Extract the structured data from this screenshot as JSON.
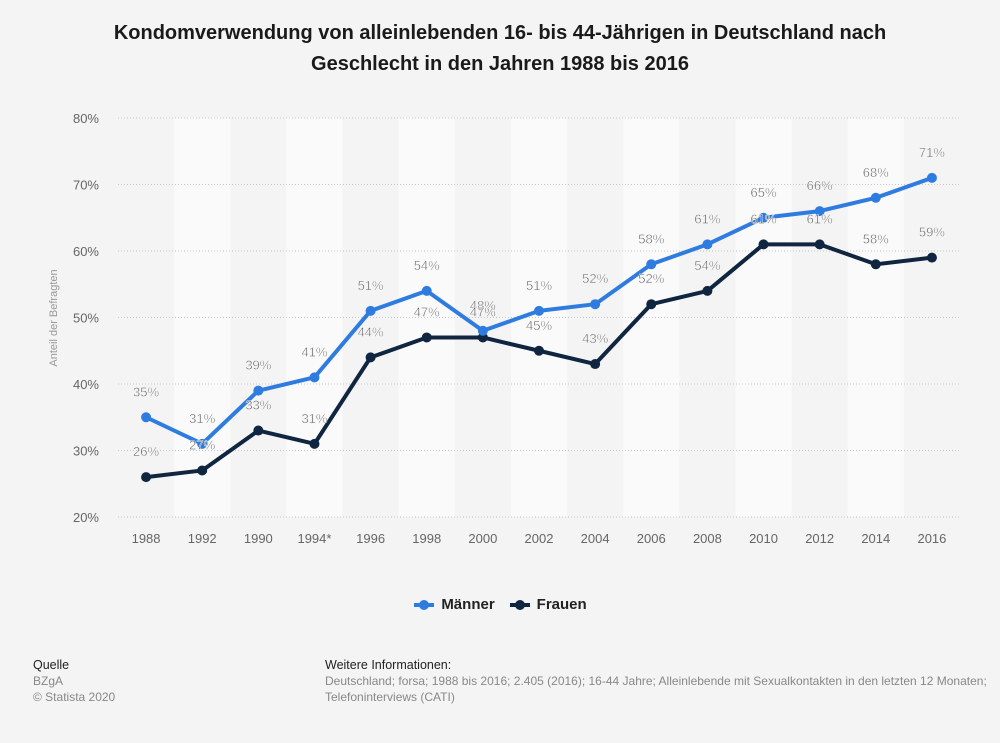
{
  "chart_data": {
    "type": "line",
    "title": "Kondomverwendung von alleinlebenden 16- bis 44-Jährigen in Deutschland nach Geschlecht in den Jahren 1988 bis 2016",
    "title_lines": [
      "Kondomverwendung von alleinlebenden 16- bis 44-Jährigen in Deutschland nach",
      "Geschlecht in den Jahren 1988 bis 2016"
    ],
    "xlabel": "",
    "ylabel": "Anteil der Befragten",
    "categories": [
      "1988",
      "1992",
      "1990",
      "1994*",
      "1996",
      "1998",
      "2000",
      "2002",
      "2004",
      "2006",
      "2008",
      "2010",
      "2012",
      "2014",
      "2016"
    ],
    "ylim": [
      20,
      80
    ],
    "yticks": [
      20,
      30,
      40,
      50,
      60,
      70,
      80
    ],
    "ytick_labels": [
      "20%",
      "30%",
      "40%",
      "50%",
      "60%",
      "70%",
      "80%"
    ],
    "grid": true,
    "legend_position": "bottom",
    "series": [
      {
        "name": "Männer",
        "color": "#2f7ce0",
        "values": [
          35,
          31,
          39,
          41,
          51,
          54,
          48,
          51,
          52,
          58,
          61,
          65,
          66,
          68,
          71
        ]
      },
      {
        "name": "Frauen",
        "color": "#0f2540",
        "values": [
          26,
          27,
          33,
          31,
          44,
          47,
          47,
          45,
          43,
          52,
          54,
          61,
          61,
          58,
          59
        ]
      }
    ],
    "value_suffix": "%"
  },
  "footer": {
    "source_heading": "Quelle",
    "source_lines": [
      "BZgA",
      "© Statista 2020"
    ],
    "info_heading": "Weitere Informationen:",
    "info_lines": [
      "Deutschland; forsa; 1988 bis 2016; 2.405 (2016); 16-44 Jahre; Alleinlebende mit Sexualkontakten in den letzten 12 Monaten;",
      "Telefoninterviews (CATI)"
    ]
  }
}
